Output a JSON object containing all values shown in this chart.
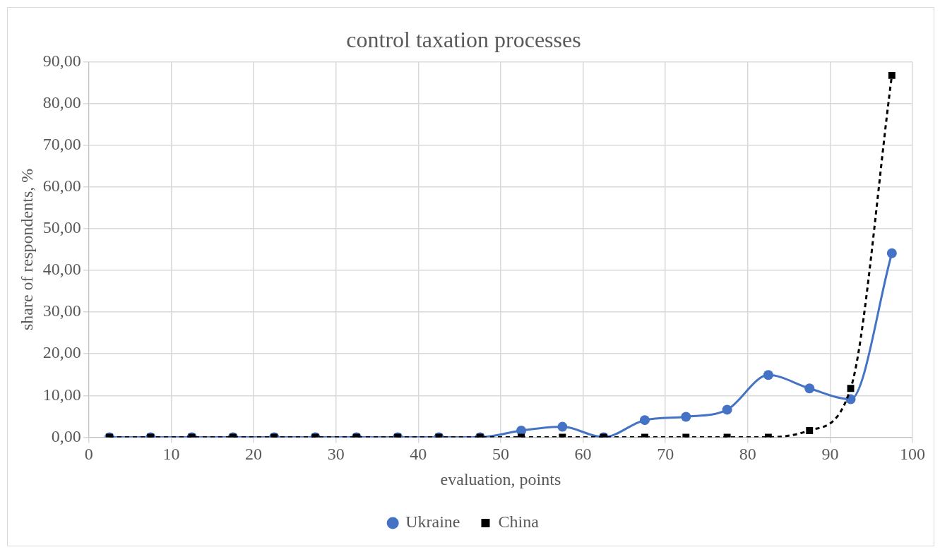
{
  "chart_data": {
    "type": "line",
    "title": "control taxation processes",
    "xlabel": "evaluation, points",
    "ylabel": "share of respondents, %",
    "x": [
      2.5,
      7.5,
      12.5,
      17.5,
      22.5,
      27.5,
      32.5,
      37.5,
      42.5,
      47.5,
      52.5,
      57.5,
      62.5,
      67.5,
      72.5,
      77.5,
      82.5,
      87.5,
      92.5,
      97.5
    ],
    "series": [
      {
        "name": "Ukraine",
        "color": "#4472c4",
        "marker": "circle",
        "line_style": "solid",
        "values": [
          0,
          0,
          0,
          0,
          0,
          0,
          0,
          0,
          0,
          0,
          1.6,
          2.5,
          0,
          4.1,
          4.9,
          6.6,
          14.9,
          11.7,
          9.1,
          44.1
        ]
      },
      {
        "name": "China",
        "color": "#000000",
        "marker": "square",
        "line_style": "dashed",
        "values": [
          0,
          0,
          0,
          0,
          0,
          0,
          0,
          0,
          0,
          0,
          0,
          0,
          0,
          0,
          0,
          0,
          0,
          1.6,
          11.7,
          86.7
        ]
      }
    ],
    "xlim": [
      0,
      100
    ],
    "xticks": [
      0,
      10,
      20,
      30,
      40,
      50,
      60,
      70,
      80,
      90,
      100
    ],
    "ylim": [
      0,
      90
    ],
    "yticks": [
      {
        "value": 0,
        "label": "0,00"
      },
      {
        "value": 10,
        "label": "10,00"
      },
      {
        "value": 20,
        "label": "20,00"
      },
      {
        "value": 30,
        "label": "30,00"
      },
      {
        "value": 40,
        "label": "40,00"
      },
      {
        "value": 50,
        "label": "50,00"
      },
      {
        "value": 60,
        "label": "60,00"
      },
      {
        "value": 70,
        "label": "70,00"
      },
      {
        "value": 80,
        "label": "80,00"
      },
      {
        "value": 90,
        "label": "90,00"
      }
    ],
    "grid": true,
    "legend": "bottom"
  }
}
